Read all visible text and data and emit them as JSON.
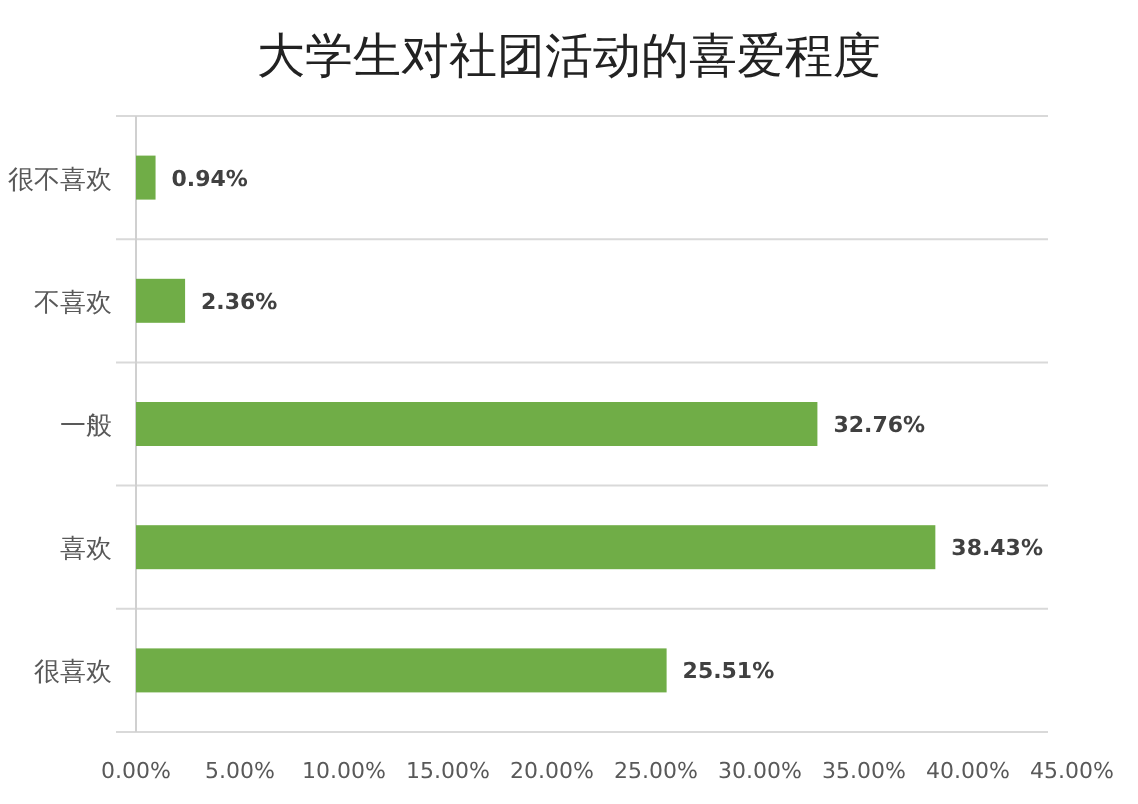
{
  "chart_data": {
    "type": "bar",
    "orientation": "horizontal",
    "title": "大学生对社团活动的喜爱程度",
    "categories": [
      "很不喜欢",
      "不喜欢",
      "一般",
      "喜欢",
      "很喜欢"
    ],
    "values": [
      0.94,
      2.36,
      32.76,
      38.43,
      25.51
    ],
    "value_labels": [
      "0.94%",
      "2.36%",
      "32.76%",
      "38.43%",
      "25.51%"
    ],
    "color": "#70ad47",
    "grid": "y",
    "xlim": [
      0,
      45
    ],
    "xticks": [
      {
        "value": 0,
        "label": "0.00%"
      },
      {
        "value": 5,
        "label": "5.00%"
      },
      {
        "value": 10,
        "label": "10.00%"
      },
      {
        "value": 15,
        "label": "15.00%"
      },
      {
        "value": 20,
        "label": "20.00%"
      },
      {
        "value": 25,
        "label": "25.00%"
      },
      {
        "value": 30,
        "label": "30.00%"
      },
      {
        "value": 35,
        "label": "35.00%"
      },
      {
        "value": 40,
        "label": "40.00%"
      },
      {
        "value": 45,
        "label": "45.00%"
      }
    ]
  }
}
